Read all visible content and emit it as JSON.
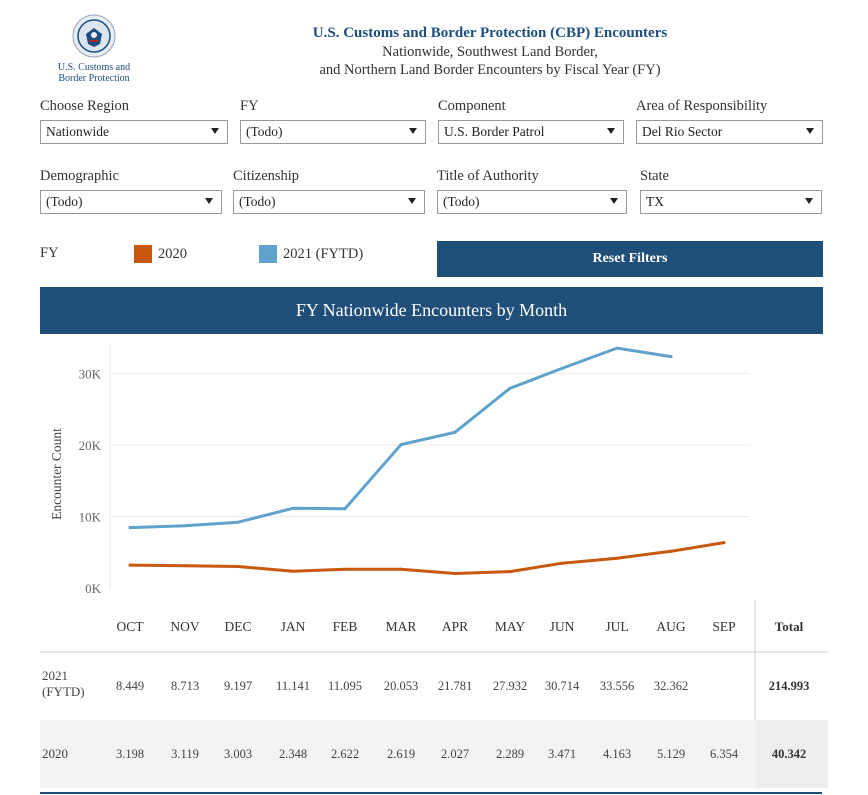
{
  "header": {
    "agency_name_line1": "U.S. Customs and",
    "agency_name_line2": "Border Protection",
    "title": "U.S. Customs and Border Protection (CBP) Encounters",
    "subtitle_line1": "Nationwide, Southwest Land Border,",
    "subtitle_line2": "and Northern Land Border Encounters by Fiscal Year (FY)"
  },
  "filters": {
    "region": {
      "label": "Choose Region",
      "value": "Nationwide"
    },
    "fy": {
      "label": "FY",
      "value": "(Todo)"
    },
    "component": {
      "label": "Component",
      "value": "U.S. Border Patrol"
    },
    "aor": {
      "label": "Area of Responsibility",
      "value": "Del Rio Sector"
    },
    "demographic": {
      "label": "Demographic",
      "value": "(Todo)"
    },
    "citizenship": {
      "label": "Citizenship",
      "value": "(Todo)"
    },
    "title_authority": {
      "label": "Title of Authority",
      "value": "(Todo)"
    },
    "state": {
      "label": "State",
      "value": "TX"
    }
  },
  "legend": {
    "label": "FY",
    "items": [
      {
        "name": "2020",
        "color": "#c9580f"
      },
      {
        "name": "2021 (FYTD)",
        "color": "#5fa2cb"
      }
    ]
  },
  "reset_label": "Reset Filters",
  "chart_banner": "FY Nationwide Encounters by Month",
  "chart_data": {
    "type": "line",
    "ylabel": "Encounter Count",
    "ylim": [
      0,
      36000
    ],
    "yticks": [
      0,
      10000,
      20000,
      30000
    ],
    "ytick_labels": [
      "0K",
      "10K",
      "20K",
      "30K"
    ],
    "categories": [
      "OCT",
      "NOV",
      "DEC",
      "JAN",
      "FEB",
      "MAR",
      "APR",
      "MAY",
      "JUN",
      "JUL",
      "AUG",
      "SEP"
    ],
    "series": [
      {
        "name": "2021 (FYTD)",
        "color": "#5fa2cb",
        "values": [
          8449,
          8713,
          9197,
          11141,
          11095,
          20053,
          21781,
          27932,
          30714,
          33556,
          32362,
          null
        ]
      },
      {
        "name": "2020",
        "color": "#c9580f",
        "values": [
          3198,
          3119,
          3003,
          2348,
          2622,
          2619,
          2027,
          2289,
          3471,
          4163,
          5129,
          6354
        ]
      }
    ],
    "grid": true
  },
  "table": {
    "total_header": "Total",
    "rows": [
      {
        "label_line1": "2021",
        "label_line2": "(FYTD)",
        "cells": [
          "8.449",
          "8.713",
          "9.197",
          "11.141",
          "11.095",
          "20.053",
          "21.781",
          "27.932",
          "30.714",
          "33.556",
          "32.362",
          ""
        ],
        "total": "214.993"
      },
      {
        "label_line1": "2020",
        "label_line2": "",
        "cells": [
          "3.198",
          "3.119",
          "3.003",
          "2.348",
          "2.622",
          "2.619",
          "2.027",
          "2.289",
          "3.471",
          "4.163",
          "5.129",
          "6.354"
        ],
        "total": "40.342"
      }
    ]
  }
}
